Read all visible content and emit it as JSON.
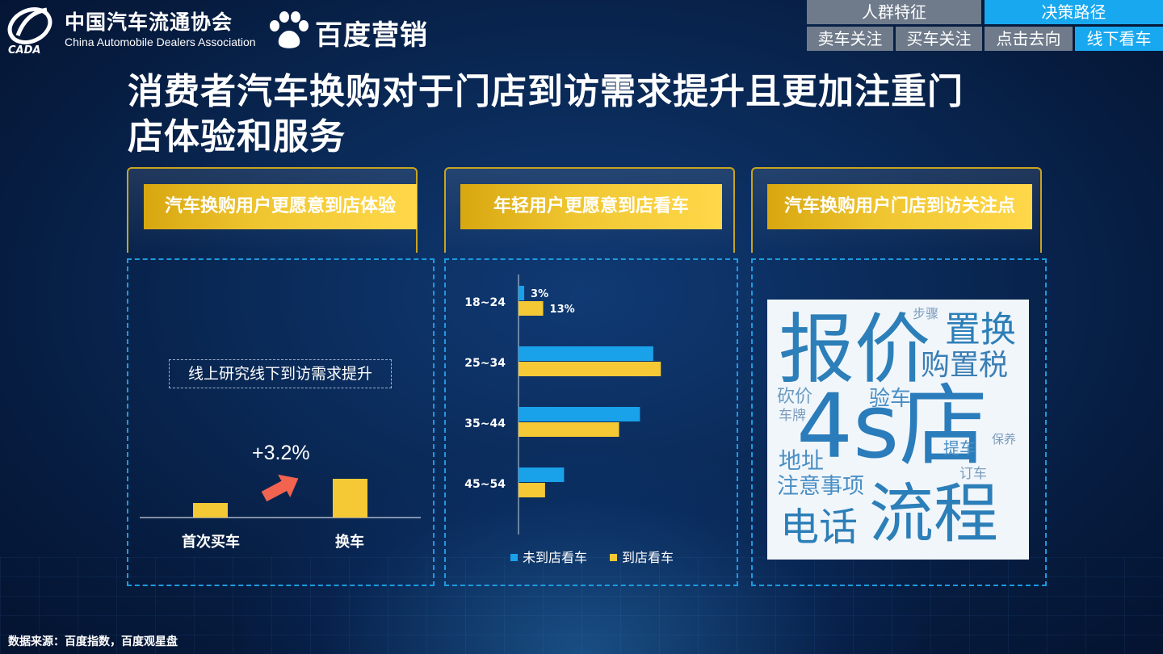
{
  "header": {
    "cada_cn": "中国汽车流通协会",
    "cada_en": "China Automobile Dealers Association",
    "cada_abbr": "CADA",
    "baidu_logo_text": "百度营销"
  },
  "nav": {
    "top": [
      {
        "label": "人群特征",
        "active": false
      },
      {
        "label": "决策路径",
        "active": true
      }
    ],
    "sub": [
      {
        "label": "卖车关注",
        "active": false
      },
      {
        "label": "买车关注",
        "active": false
      },
      {
        "label": "点击去向",
        "active": false
      },
      {
        "label": "线下看车",
        "active": true
      }
    ]
  },
  "title_line1": "消费者汽车换购对于门店到访需求提升且更加注重门",
  "title_line2": "店体验和服务",
  "panels": [
    {
      "heading": "汽车换购用户更愿意到店体验"
    },
    {
      "heading": "年轻用户更愿意到店看车"
    },
    {
      "heading": "汽车换购用户门店到访关注点"
    }
  ],
  "panel1": {
    "tag": "线上研究线下到访需求提升",
    "delta": "+3.2%"
  },
  "source": "数据来源：百度指数，百度观星盘",
  "colors": {
    "blue": "#19a2ea",
    "yellow": "#f4c935",
    "arrow": "#f26350",
    "gold": "#d8a710"
  },
  "chart_data": [
    {
      "type": "bar",
      "categories": [
        "首次买车",
        "换车"
      ],
      "values": [
        null,
        null
      ],
      "annotation": "+3.2%",
      "note": "values not printed; relative bar heights only"
    },
    {
      "type": "bar",
      "orientation": "horizontal",
      "categories": [
        "18~24",
        "25~34",
        "35~44",
        "45~54"
      ],
      "series": [
        {
          "name": "未到店看车",
          "color": "#19a2ea",
          "values": [
            3,
            71,
            64,
            24
          ]
        },
        {
          "name": "到店看车",
          "color": "#f4c935",
          "values": [
            13,
            75,
            53,
            14
          ]
        }
      ],
      "data_labels": [
        [
          "3%",
          "13%"
        ],
        null,
        null,
        null
      ],
      "legend": "bottom"
    }
  ],
  "wordcloud": [
    "报价",
    "置换",
    "购置税",
    "步骤",
    "4s店",
    "砍价",
    "验车",
    "车牌",
    "提车",
    "保养",
    "地址",
    "订车",
    "注意事项",
    "电话",
    "流程"
  ]
}
